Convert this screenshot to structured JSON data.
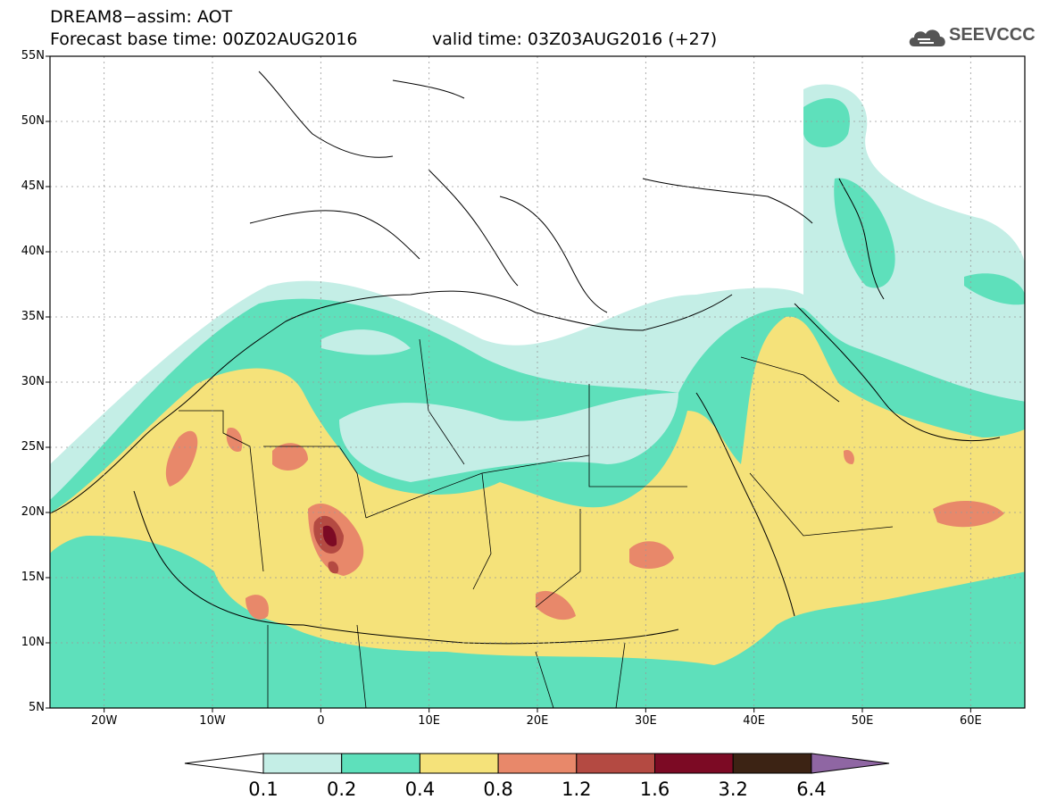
{
  "header": {
    "title": "DREAM8−assim: AOT",
    "base_time": "Forecast base time: 00Z02AUG2016",
    "valid_time": "valid time: 03Z03AUG2016 (+27)"
  },
  "logo": {
    "text": "SEEVCCC",
    "icon": "cloud-icon"
  },
  "map": {
    "variable": "AOT",
    "extent": {
      "lon": [
        -25,
        65
      ],
      "lat": [
        5,
        55
      ]
    },
    "lat_labels": [
      "55N",
      "50N",
      "45N",
      "40N",
      "35N",
      "30N",
      "25N",
      "20N",
      "15N",
      "10N",
      "5N"
    ],
    "lat_values": [
      55,
      50,
      45,
      40,
      35,
      30,
      25,
      20,
      15,
      10,
      5
    ],
    "lon_labels": [
      "20W",
      "10W",
      "0",
      "10E",
      "20E",
      "30E",
      "40E",
      "50E",
      "60E"
    ],
    "lon_values": [
      -20,
      -10,
      0,
      10,
      20,
      30,
      40,
      50,
      60
    ],
    "grid": "dotted"
  },
  "colorbar": {
    "levels": [
      "0.1",
      "0.2",
      "0.4",
      "0.8",
      "1.2",
      "1.6",
      "3.2",
      "6.4"
    ],
    "colors": [
      "#ffffff",
      "#c4eee6",
      "#5ee0bb",
      "#f5e27a",
      "#e8886a",
      "#b44a42",
      "#7c0a24",
      "#3c2314",
      "#8f66a3"
    ]
  }
}
